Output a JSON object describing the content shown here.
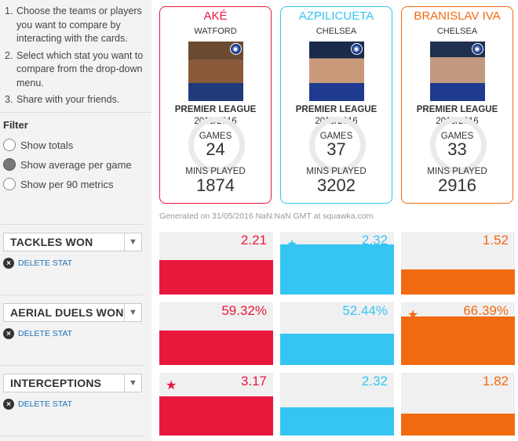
{
  "instructions": [
    {
      "num": "1.",
      "text": "Choose the teams or players you want to compare by interacting with the cards."
    },
    {
      "num": "2.",
      "text": "Select which stat you want to compare from the drop-down menu."
    },
    {
      "num": "3.",
      "text": "Share with your friends."
    }
  ],
  "filter": {
    "title": "Filter",
    "options": [
      {
        "label": "Show totals",
        "checked": false
      },
      {
        "label": "Show average per game",
        "checked": true
      },
      {
        "label": "Show per 90 metrics",
        "checked": false
      }
    ]
  },
  "players": [
    {
      "name": "AKÉ",
      "club": "WATFORD",
      "league": "PREMIER LEAGUE",
      "season": "2015/2016",
      "games_label": "GAMES",
      "games": "24",
      "mins_label": "MINS PLAYED",
      "mins": "1874",
      "color": "#e8183c"
    },
    {
      "name": "AZPILICUETA",
      "club": "CHELSEA",
      "league": "PREMIER LEAGUE",
      "season": "2015/2016",
      "games_label": "GAMES",
      "games": "37",
      "mins_label": "MINS PLAYED",
      "mins": "3202",
      "color": "#35c5f2"
    },
    {
      "name": "BRANISLAV IVA",
      "club": "CHELSEA",
      "league": "PREMIER LEAGUE",
      "season": "2015/2016",
      "games_label": "GAMES",
      "games": "33",
      "mins_label": "MINS PLAYED",
      "mins": "2916",
      "color": "#f26a10"
    }
  ],
  "generated": "Generated on 31/05/2016 NaN:NaN GMT at squawka.com",
  "delete_label": "DELETE STAT",
  "stats": [
    {
      "name": "TACKLES WON",
      "values": [
        "2.21",
        "2.32",
        "1.52"
      ],
      "fill": [
        0.55,
        0.8,
        0.4
      ],
      "star": 1
    },
    {
      "name": "AERIAL DUELS WON",
      "values": [
        "59.32%",
        "52.44%",
        "66.39%"
      ],
      "fill": [
        0.55,
        0.5,
        0.78
      ],
      "star": 2
    },
    {
      "name": "INTERCEPTIONS",
      "values": [
        "3.17",
        "2.32",
        "1.82"
      ],
      "fill": [
        0.62,
        0.45,
        0.35
      ],
      "star": 0
    }
  ]
}
